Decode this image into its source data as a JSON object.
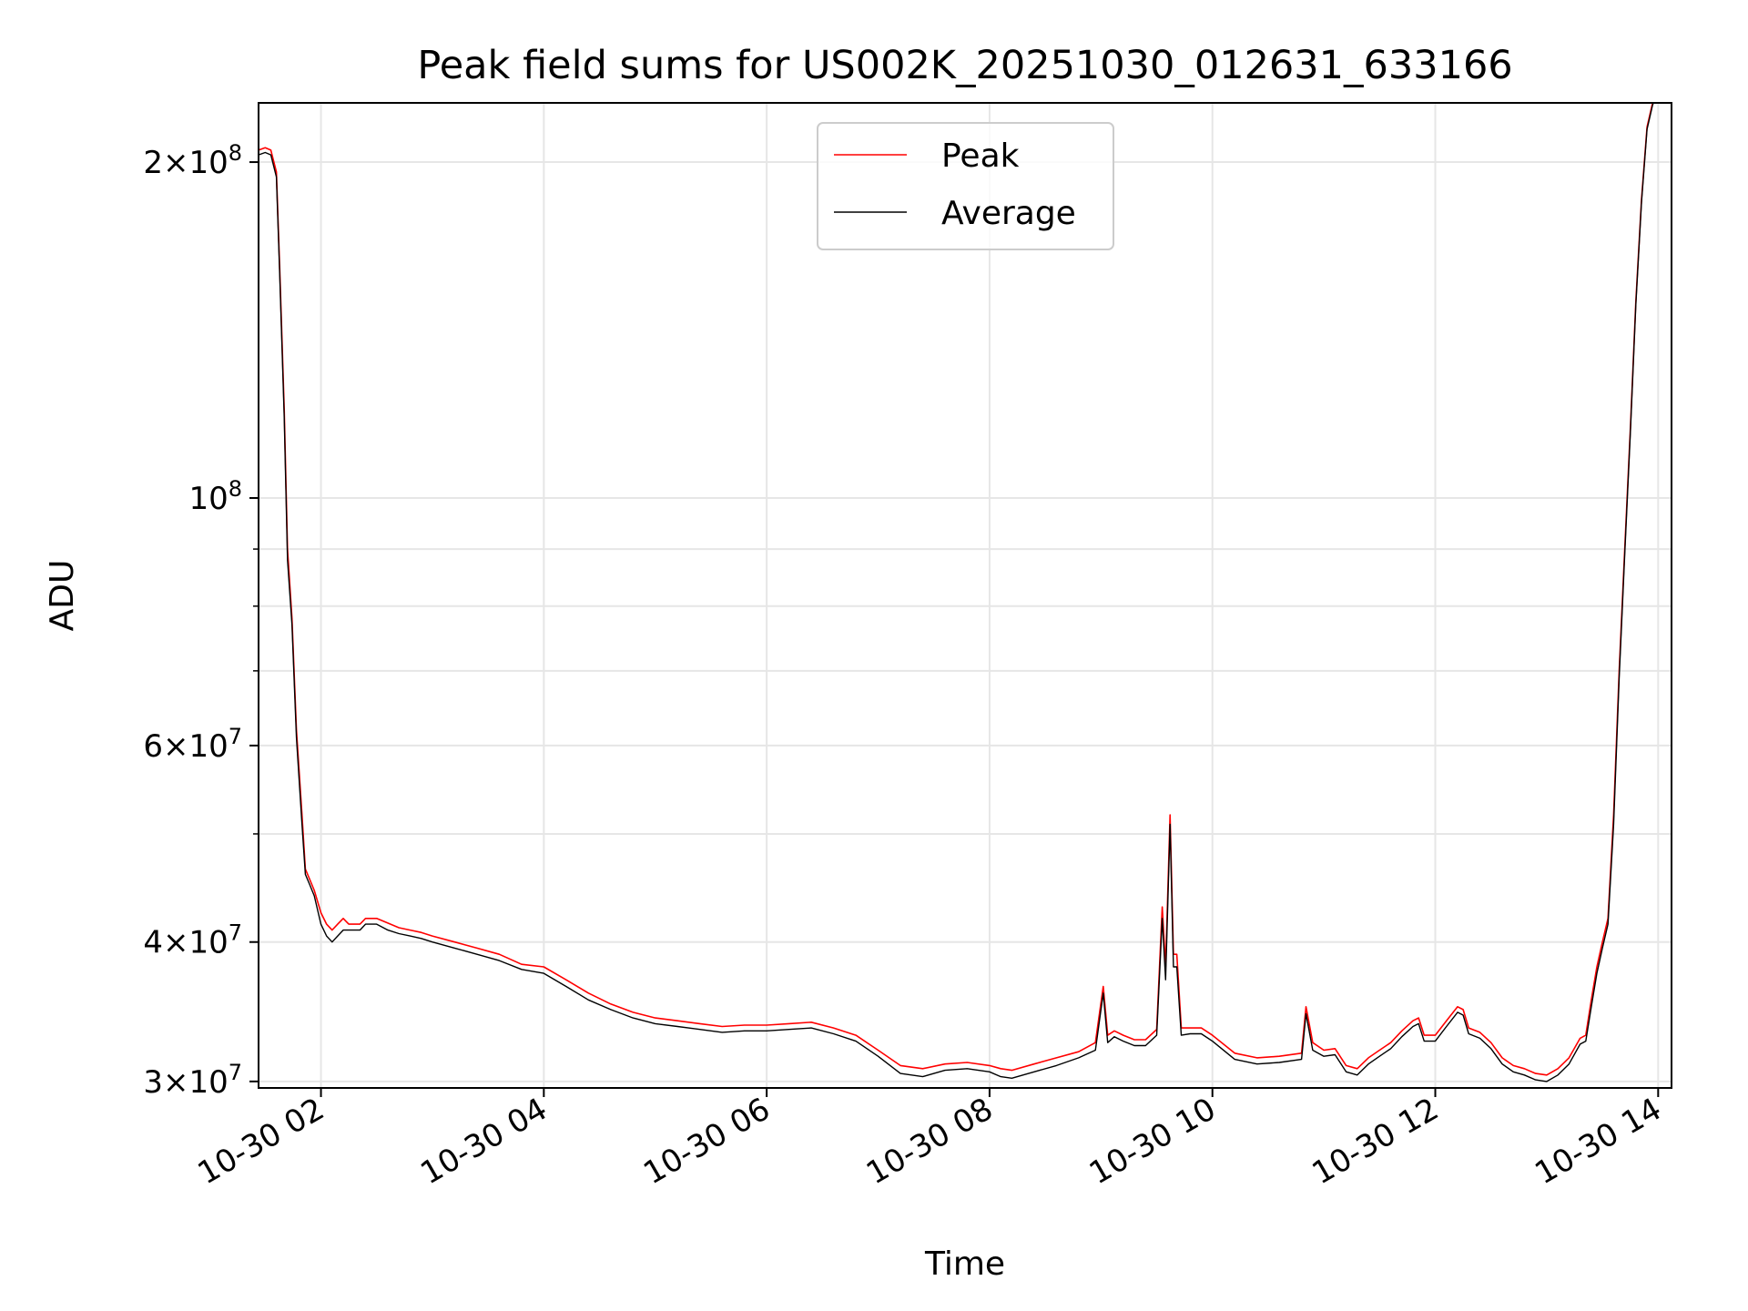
{
  "chart_data": {
    "type": "line",
    "title": "Peak field sums for US002K_20251030_012631_633166",
    "xlabel": "Time",
    "ylabel": "ADU",
    "yscale": "log",
    "ylim": [
      29600000,
      226000000
    ],
    "xlim_hours": [
      1.44,
      14.12
    ],
    "grid": true,
    "legend_location": "upper center",
    "x_tick_labels": [
      "10-30 02",
      "10-30 04",
      "10-30 06",
      "10-30 08",
      "10-30 10",
      "10-30 12",
      "10-30 14"
    ],
    "x_tick_hours": [
      2,
      4,
      6,
      8,
      10,
      12,
      14
    ],
    "y_tick_labels": [
      {
        "value": 30000000,
        "base": "3×10",
        "exp": "7"
      },
      {
        "value": 40000000,
        "base": "4×10",
        "exp": "7"
      },
      {
        "value": 60000000,
        "base": "6×10",
        "exp": "7"
      },
      {
        "value": 100000000,
        "base": "10",
        "exp": "8"
      },
      {
        "value": 200000000,
        "base": "2×10",
        "exp": "8"
      }
    ],
    "y_minor_ticks": [
      50000000,
      70000000,
      80000000,
      90000000
    ],
    "series": [
      {
        "name": "Peak",
        "color": "#ff0000",
        "x_hours": [
          1.44,
          1.5,
          1.55,
          1.6,
          1.63,
          1.67,
          1.7,
          1.74,
          1.78,
          1.83,
          1.86,
          1.9,
          1.94,
          2.0,
          2.05,
          2.1,
          2.15,
          2.2,
          2.25,
          2.3,
          2.35,
          2.4,
          2.5,
          2.6,
          2.7,
          2.8,
          2.9,
          3.0,
          3.2,
          3.4,
          3.6,
          3.8,
          4.0,
          4.2,
          4.4,
          4.6,
          4.8,
          5.0,
          5.2,
          5.4,
          5.6,
          5.8,
          6.0,
          6.2,
          6.4,
          6.6,
          6.8,
          7.0,
          7.2,
          7.4,
          7.6,
          7.8,
          8.0,
          8.1,
          8.2,
          8.4,
          8.6,
          8.8,
          8.95,
          9.02,
          9.06,
          9.12,
          9.2,
          9.3,
          9.4,
          9.5,
          9.55,
          9.58,
          9.62,
          9.65,
          9.68,
          9.72,
          9.8,
          9.9,
          10.0,
          10.2,
          10.4,
          10.6,
          10.8,
          10.84,
          10.9,
          11.0,
          11.1,
          11.2,
          11.3,
          11.4,
          11.5,
          11.6,
          11.7,
          11.8,
          11.85,
          11.9,
          12.0,
          12.1,
          12.2,
          12.25,
          12.3,
          12.4,
          12.5,
          12.6,
          12.7,
          12.8,
          12.9,
          13.0,
          13.1,
          13.2,
          13.3,
          13.35,
          13.4,
          13.45,
          13.5,
          13.55,
          13.6,
          13.65,
          13.7,
          13.75,
          13.8,
          13.85,
          13.9,
          13.95,
          13.98
        ],
        "values": [
          205000000,
          206000000,
          205000000,
          196000000,
          160000000,
          120000000,
          90000000,
          78000000,
          62000000,
          52000000,
          46500000,
          45500000,
          44500000,
          42500000,
          41500000,
          41000000,
          41500000,
          42000000,
          41500000,
          41500000,
          41500000,
          42000000,
          42000000,
          41600000,
          41200000,
          41000000,
          40800000,
          40500000,
          40000000,
          39500000,
          39000000,
          38200000,
          38000000,
          37000000,
          36000000,
          35200000,
          34600000,
          34200000,
          34000000,
          33800000,
          33600000,
          33700000,
          33700000,
          33800000,
          33900000,
          33500000,
          33000000,
          32000000,
          31000000,
          30800000,
          31100000,
          31200000,
          31000000,
          30800000,
          30700000,
          31100000,
          31500000,
          31900000,
          32500000,
          36500000,
          33000000,
          33300000,
          33000000,
          32700000,
          32700000,
          33400000,
          43000000,
          38000000,
          52000000,
          39000000,
          39000000,
          33500000,
          33500000,
          33500000,
          33000000,
          31800000,
          31500000,
          31600000,
          31800000,
          35000000,
          32500000,
          32000000,
          32100000,
          31000000,
          30800000,
          31500000,
          32000000,
          32500000,
          33300000,
          34000000,
          34200000,
          33000000,
          33000000,
          34000000,
          35000000,
          34800000,
          33500000,
          33200000,
          32500000,
          31500000,
          31000000,
          30800000,
          30500000,
          30400000,
          30800000,
          31500000,
          32800000,
          33000000,
          35500000,
          38000000,
          40000000,
          42000000,
          52000000,
          70000000,
          90000000,
          115000000,
          150000000,
          185000000,
          215000000,
          226000000,
          230000000
        ]
      },
      {
        "name": "Average",
        "color": "#000000",
        "x_hours": [
          1.44,
          1.5,
          1.55,
          1.6,
          1.63,
          1.67,
          1.7,
          1.74,
          1.78,
          1.83,
          1.86,
          1.9,
          1.94,
          2.0,
          2.05,
          2.1,
          2.15,
          2.2,
          2.25,
          2.3,
          2.35,
          2.4,
          2.5,
          2.6,
          2.7,
          2.8,
          2.9,
          3.0,
          3.2,
          3.4,
          3.6,
          3.8,
          4.0,
          4.2,
          4.4,
          4.6,
          4.8,
          5.0,
          5.2,
          5.4,
          5.6,
          5.8,
          6.0,
          6.2,
          6.4,
          6.6,
          6.8,
          7.0,
          7.2,
          7.4,
          7.6,
          7.8,
          8.0,
          8.1,
          8.2,
          8.4,
          8.6,
          8.8,
          8.95,
          9.02,
          9.06,
          9.12,
          9.2,
          9.3,
          9.4,
          9.5,
          9.55,
          9.58,
          9.62,
          9.65,
          9.68,
          9.72,
          9.8,
          9.9,
          10.0,
          10.2,
          10.4,
          10.6,
          10.8,
          10.84,
          10.9,
          11.0,
          11.1,
          11.2,
          11.3,
          11.4,
          11.5,
          11.6,
          11.7,
          11.8,
          11.85,
          11.9,
          12.0,
          12.1,
          12.2,
          12.25,
          12.3,
          12.4,
          12.5,
          12.6,
          12.7,
          12.8,
          12.9,
          13.0,
          13.1,
          13.2,
          13.3,
          13.35,
          13.4,
          13.45,
          13.5,
          13.55,
          13.6,
          13.65,
          13.7,
          13.75,
          13.8,
          13.85,
          13.9,
          13.95,
          13.98
        ],
        "values": [
          203000000,
          204000000,
          203000000,
          194000000,
          158000000,
          118000000,
          88000000,
          77000000,
          61000000,
          51000000,
          46000000,
          45000000,
          44000000,
          41500000,
          40500000,
          40000000,
          40500000,
          41000000,
          41000000,
          41000000,
          41000000,
          41500000,
          41500000,
          41000000,
          40700000,
          40500000,
          40300000,
          40000000,
          39500000,
          39000000,
          38500000,
          37800000,
          37500000,
          36500000,
          35500000,
          34800000,
          34200000,
          33800000,
          33600000,
          33400000,
          33200000,
          33300000,
          33300000,
          33400000,
          33500000,
          33100000,
          32600000,
          31600000,
          30500000,
          30300000,
          30700000,
          30800000,
          30600000,
          30300000,
          30200000,
          30600000,
          31000000,
          31500000,
          32000000,
          36000000,
          32500000,
          32900000,
          32600000,
          32300000,
          32300000,
          33000000,
          42000000,
          37000000,
          51000000,
          38000000,
          38000000,
          33000000,
          33100000,
          33100000,
          32600000,
          31400000,
          31100000,
          31200000,
          31400000,
          34500000,
          32000000,
          31600000,
          31700000,
          30600000,
          30400000,
          31100000,
          31600000,
          32100000,
          32900000,
          33600000,
          33800000,
          32600000,
          32600000,
          33600000,
          34600000,
          34400000,
          33100000,
          32800000,
          32100000,
          31100000,
          30600000,
          30400000,
          30100000,
          30000000,
          30400000,
          31100000,
          32400000,
          32600000,
          35000000,
          37500000,
          39500000,
          41500000,
          51000000,
          69000000,
          89000000,
          114000000,
          149000000,
          184000000,
          214000000,
          225000000,
          229000000
        ]
      }
    ]
  }
}
